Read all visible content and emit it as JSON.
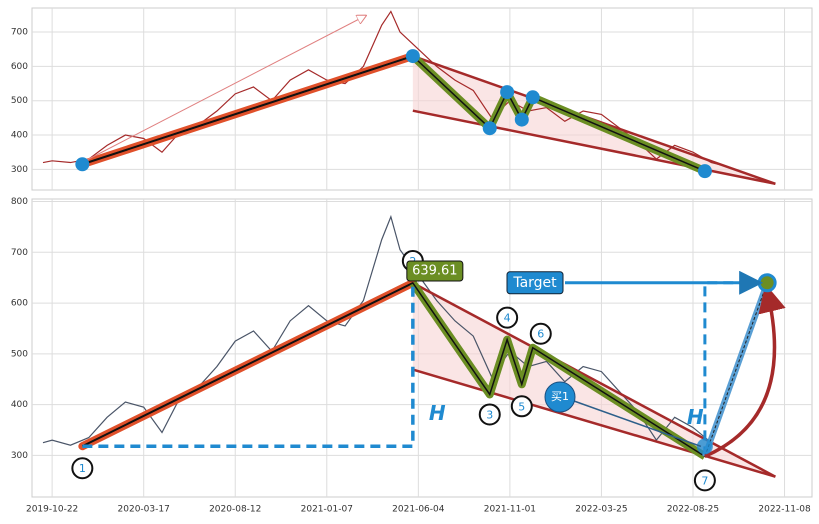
{
  "chart_data": [
    {
      "type": "line",
      "xlim": [
        -22,
        830
      ],
      "ylim": [
        240,
        770
      ],
      "yticks": [
        300,
        400,
        500,
        600,
        700
      ],
      "xticks": [
        0,
        100,
        200,
        300,
        400,
        500,
        600,
        700,
        800
      ],
      "grid": true,
      "series": [
        {
          "color": "#a52a2a",
          "x": [
            -10,
            0,
            20,
            40,
            60,
            80,
            100,
            120,
            140,
            160,
            180,
            200,
            220,
            240,
            260,
            280,
            300,
            320,
            340,
            360,
            370,
            380,
            400,
            420,
            440,
            460,
            480,
            500,
            520,
            540,
            560,
            580,
            600,
            620,
            640,
            660,
            680,
            700,
            720,
            735
          ],
          "values": [
            320,
            325,
            320,
            330,
            370,
            400,
            390,
            350,
            410,
            430,
            470,
            520,
            540,
            500,
            560,
            590,
            560,
            550,
            600,
            720,
            760,
            700,
            650,
            600,
            560,
            530,
            450,
            500,
            470,
            480,
            440,
            470,
            460,
            420,
            380,
            330,
            370,
            350,
            320,
            310
          ]
        }
      ],
      "pattern": {
        "x": [
          33,
          394,
          478,
          497,
          513,
          525,
          713
        ],
        "values": [
          315,
          630,
          420,
          525,
          445,
          510,
          295
        ]
      },
      "upper_line": {
        "x": [
          394,
          790
        ],
        "values": [
          630,
          258
        ]
      },
      "lower_line": {
        "x": [
          394,
          790
        ],
        "values": [
          471,
          258
        ]
      }
    },
    {
      "type": "line",
      "xlim": [
        -22,
        830
      ],
      "ylim": [
        218,
        805
      ],
      "yticks": [
        300,
        400,
        500,
        600,
        700,
        800
      ],
      "xticks": [
        {
          "value": 0,
          "label": "2019-10-22"
        },
        {
          "value": 100,
          "label": "2020-03-17"
        },
        {
          "value": 200,
          "label": "2020-08-12"
        },
        {
          "value": 300,
          "label": "2021-01-07"
        },
        {
          "value": 400,
          "label": "2021-06-04"
        },
        {
          "value": 500,
          "label": "2021-11-01"
        },
        {
          "value": 600,
          "label": "2022-03-25"
        },
        {
          "value": 700,
          "label": "2022-08-25"
        },
        {
          "value": 800,
          "label": "2022-11-08"
        }
      ],
      "grid": true,
      "series": [
        {
          "color": "#4a5568",
          "x": [
            -10,
            0,
            20,
            40,
            60,
            80,
            100,
            120,
            140,
            160,
            180,
            200,
            220,
            240,
            260,
            280,
            300,
            320,
            340,
            360,
            370,
            380,
            400,
            420,
            440,
            460,
            480,
            500,
            520,
            540,
            560,
            580,
            600,
            620,
            640,
            660,
            680,
            700,
            720,
            735
          ],
          "values": [
            325,
            330,
            320,
            335,
            375,
            405,
            395,
            345,
            415,
            435,
            475,
            525,
            545,
            505,
            565,
            595,
            565,
            555,
            605,
            725,
            770,
            705,
            655,
            605,
            565,
            535,
            455,
            505,
            475,
            485,
            445,
            475,
            465,
            425,
            385,
            330,
            375,
            355,
            325,
            310
          ]
        }
      ],
      "pattern": {
        "x": [
          33,
          394,
          478,
          497,
          513,
          525,
          713
        ],
        "values": [
          318,
          639.61,
          420,
          528,
          440,
          512,
          298
        ]
      },
      "pattern_labels": [
        "1",
        "2",
        "3",
        "4",
        "5",
        "6",
        "7"
      ],
      "upper_line": {
        "x": [
          394,
          790
        ],
        "values": [
          639.61,
          258
        ]
      },
      "lower_line": {
        "x": [
          394,
          790
        ],
        "values": [
          469,
          258
        ]
      },
      "target": {
        "x": 781,
        "value": 640,
        "label": "Target"
      },
      "height_label": "H",
      "buy_label": "买1"
    }
  ]
}
